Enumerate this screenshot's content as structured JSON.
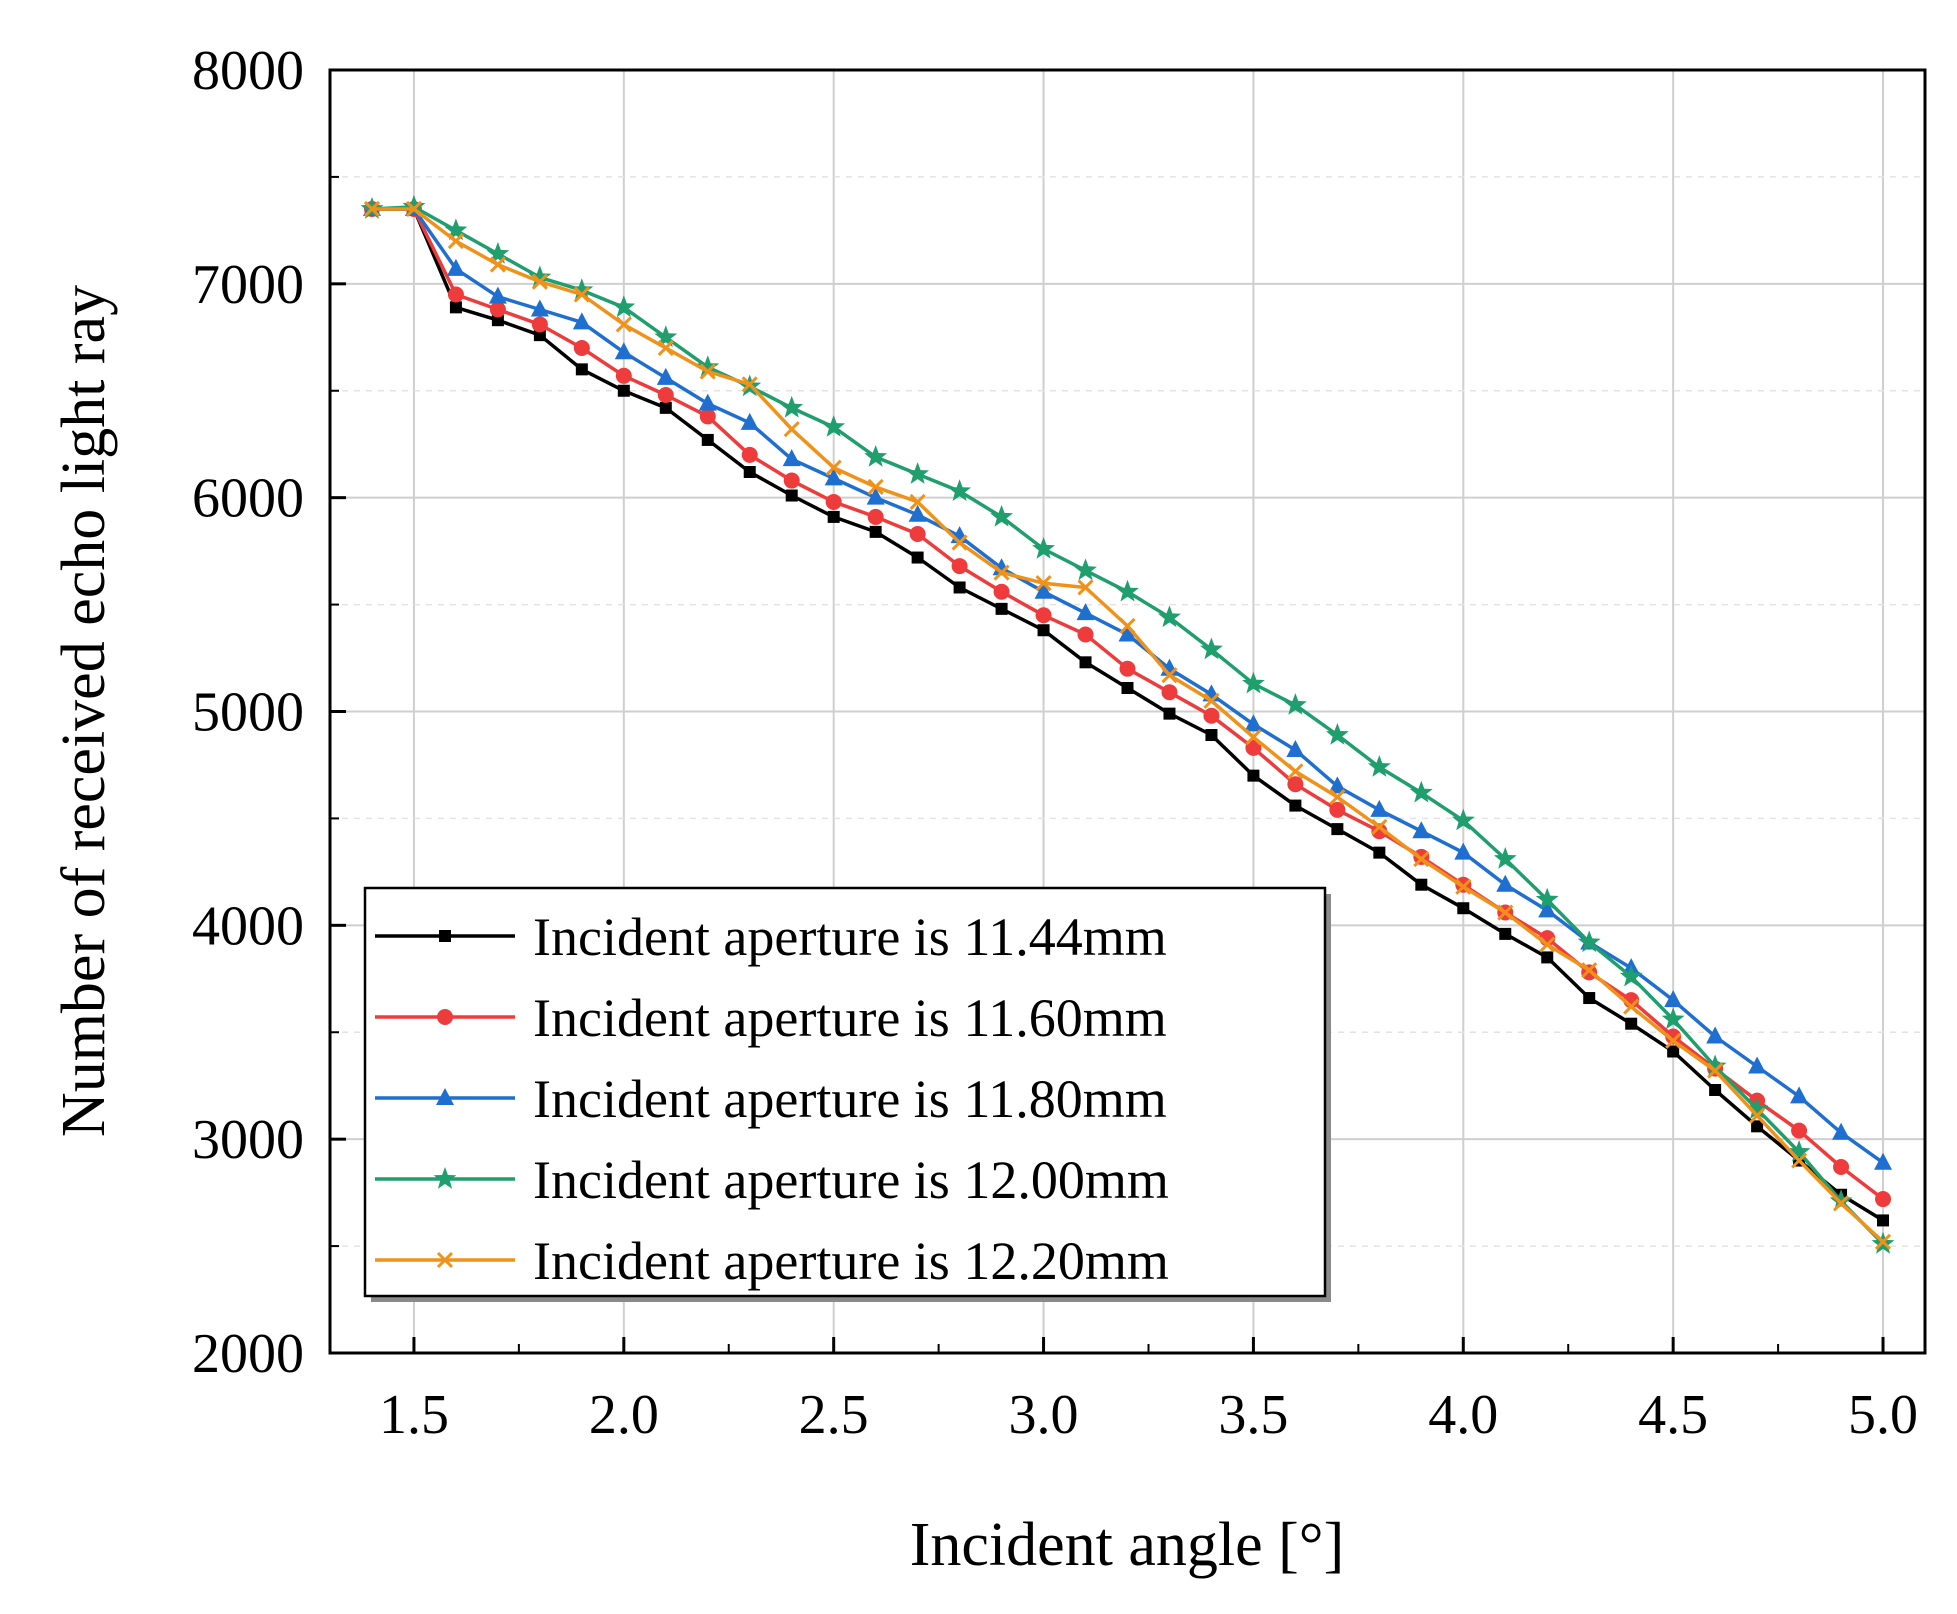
{
  "chart_data": {
    "type": "line",
    "title": "",
    "xlabel": "Incident angle [°]",
    "ylabel": "Number of received echo light ray",
    "xlim": [
      1.3,
      5.1
    ],
    "ylim": [
      2000,
      8000
    ],
    "xticks": [
      1.5,
      2.0,
      2.5,
      3.0,
      3.5,
      4.0,
      4.5,
      5.0
    ],
    "xtick_labels": [
      "1.5",
      "2.0",
      "2.5",
      "3.0",
      "3.5",
      "4.0",
      "4.5",
      "5.0"
    ],
    "yticks": [
      2000,
      3000,
      4000,
      5000,
      6000,
      7000,
      8000
    ],
    "ytick_labels": [
      "2000",
      "3000",
      "4000",
      "5000",
      "6000",
      "7000",
      "8000"
    ],
    "grid": true,
    "legend_position": "bottom-left",
    "x": [
      1.4,
      1.5,
      1.6,
      1.7,
      1.8,
      1.9,
      2.0,
      2.1,
      2.2,
      2.3,
      2.4,
      2.5,
      2.6,
      2.7,
      2.8,
      2.9,
      3.0,
      3.1,
      3.2,
      3.3,
      3.4,
      3.5,
      3.6,
      3.7,
      3.8,
      3.9,
      4.0,
      4.1,
      4.2,
      4.3,
      4.4,
      4.5,
      4.6,
      4.7,
      4.8,
      4.9,
      5.0
    ],
    "series": [
      {
        "name": "Incident aperture is 11.44mm",
        "color": "#000000",
        "marker": "square",
        "values": [
          7350,
          7350,
          6890,
          6830,
          6760,
          6600,
          6500,
          6420,
          6270,
          6120,
          6010,
          5910,
          5840,
          5720,
          5580,
          5480,
          5380,
          5230,
          5110,
          4990,
          4890,
          4700,
          4560,
          4450,
          4340,
          4190,
          4080,
          3960,
          3850,
          3660,
          3540,
          3410,
          3230,
          3060,
          2900,
          2740,
          2620
        ]
      },
      {
        "name": "Incident aperture is 11.60mm",
        "color": "#ee3b3b",
        "marker": "circle",
        "values": [
          7350,
          7350,
          6950,
          6880,
          6810,
          6700,
          6570,
          6480,
          6380,
          6200,
          6080,
          5980,
          5910,
          5830,
          5680,
          5560,
          5450,
          5360,
          5200,
          5090,
          4980,
          4830,
          4660,
          4540,
          4440,
          4320,
          4190,
          4060,
          3940,
          3780,
          3650,
          3480,
          3330,
          3180,
          3040,
          2870,
          2720
        ]
      },
      {
        "name": "Incident aperture is 11.80mm",
        "color": "#1f6fd1",
        "marker": "triangle",
        "values": [
          7350,
          7350,
          7070,
          6940,
          6880,
          6820,
          6680,
          6560,
          6440,
          6350,
          6180,
          6090,
          6000,
          5920,
          5820,
          5670,
          5560,
          5460,
          5360,
          5200,
          5080,
          4940,
          4820,
          4650,
          4540,
          4440,
          4340,
          4190,
          4070,
          3920,
          3800,
          3650,
          3480,
          3340,
          3200,
          3030,
          2890
        ]
      },
      {
        "name": "Incident aperture is 12.00mm",
        "color": "#1f9e6e",
        "marker": "star",
        "values": [
          7350,
          7360,
          7250,
          7140,
          7030,
          6970,
          6890,
          6750,
          6610,
          6520,
          6420,
          6330,
          6190,
          6110,
          6030,
          5910,
          5760,
          5660,
          5560,
          5440,
          5290,
          5130,
          5030,
          4890,
          4740,
          4620,
          4490,
          4310,
          4120,
          3920,
          3760,
          3560,
          3340,
          3140,
          2940,
          2710,
          2510
        ]
      },
      {
        "name": "Incident aperture is 12.20mm",
        "color": "#f0911a",
        "marker": "x",
        "values": [
          7350,
          7350,
          7200,
          7090,
          7010,
          6950,
          6810,
          6700,
          6590,
          6530,
          6320,
          6140,
          6050,
          5980,
          5790,
          5650,
          5600,
          5580,
          5400,
          5170,
          5050,
          4880,
          4720,
          4600,
          4460,
          4310,
          4180,
          4060,
          3910,
          3790,
          3620,
          3460,
          3320,
          3110,
          2900,
          2700,
          2520
        ]
      }
    ]
  }
}
